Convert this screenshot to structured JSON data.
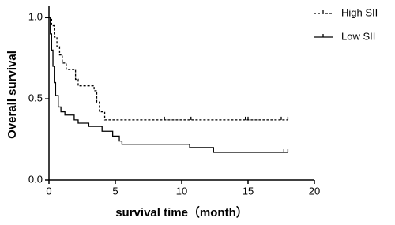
{
  "chart_data": {
    "type": "step",
    "xlabel": "survival time（month）",
    "ylabel": "Overall survival",
    "xlim": [
      0,
      20
    ],
    "xticks": [
      0,
      5,
      10,
      15,
      20
    ],
    "ylim": [
      0,
      1.05
    ],
    "yticks": [
      {
        "value": 0,
        "label": "0.0"
      },
      0.5,
      {
        "value": 1,
        "label": "1.0"
      }
    ],
    "series": [
      {
        "name": "High SII",
        "color": "#000000",
        "dash": true,
        "x": [
          0,
          0.2,
          0.4,
          0.6,
          0.8,
          1.0,
          1.3,
          2.0,
          2.2,
          3.4,
          3.6,
          3.8,
          4.2,
          18
        ],
        "values": [
          1.0,
          0.95,
          0.88,
          0.82,
          0.77,
          0.72,
          0.68,
          0.62,
          0.58,
          0.55,
          0.48,
          0.42,
          0.37,
          0.37
        ],
        "censor_x": [
          8.7,
          10.7,
          14.8,
          15.0,
          17.5,
          18.0
        ]
      },
      {
        "name": "Low SII",
        "color": "#000000",
        "dash": false,
        "x": [
          0,
          0.1,
          0.2,
          0.3,
          0.4,
          0.5,
          0.7,
          0.9,
          1.2,
          1.9,
          2.2,
          3.0,
          4.0,
          4.8,
          5.3,
          5.5,
          10.6,
          12.4,
          18
        ],
        "values": [
          1.0,
          0.9,
          0.8,
          0.7,
          0.6,
          0.52,
          0.45,
          0.42,
          0.4,
          0.37,
          0.35,
          0.33,
          0.3,
          0.27,
          0.24,
          0.22,
          0.2,
          0.17,
          0.17
        ],
        "censor_x": [
          17.7,
          18.0
        ]
      }
    ]
  }
}
